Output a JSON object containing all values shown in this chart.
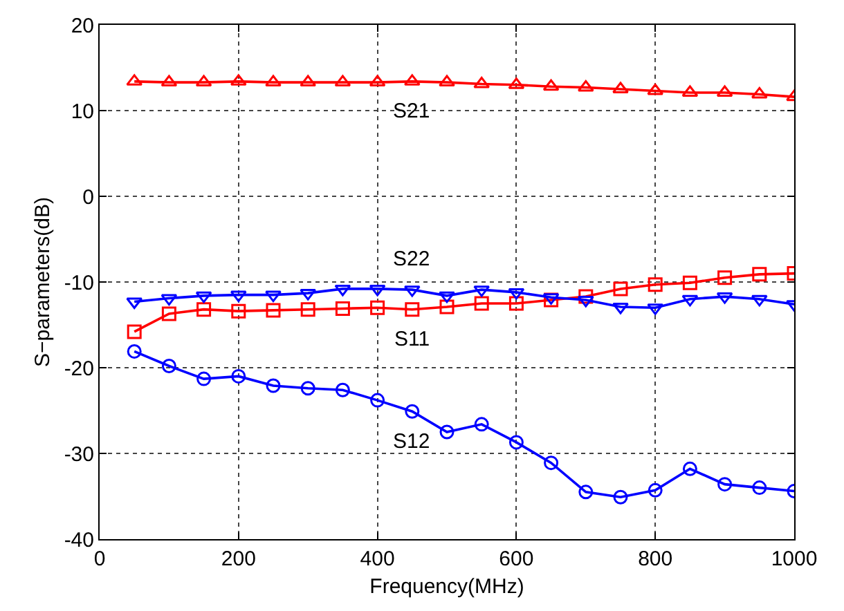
{
  "chart_data": {
    "type": "line",
    "xlabel": "Frequency(MHz)",
    "ylabel": "S−parameters(dB)",
    "x": [
      50,
      100,
      150,
      200,
      250,
      300,
      350,
      400,
      450,
      500,
      550,
      600,
      650,
      700,
      750,
      800,
      850,
      900,
      950,
      1000
    ],
    "series": [
      {
        "name": "S21",
        "color": "#ff0000",
        "marker": "triangle",
        "values": [
          13.4,
          13.3,
          13.3,
          13.4,
          13.3,
          13.3,
          13.3,
          13.3,
          13.4,
          13.3,
          13.1,
          13.0,
          12.8,
          12.7,
          12.5,
          12.3,
          12.1,
          12.1,
          11.9,
          11.6
        ]
      },
      {
        "name": "S11",
        "color": "#ff0000",
        "marker": "square",
        "values": [
          -15.8,
          -13.7,
          -13.2,
          -13.4,
          -13.3,
          -13.2,
          -13.1,
          -13.0,
          -13.2,
          -12.9,
          -12.5,
          -12.5,
          -12.1,
          -11.7,
          -10.8,
          -10.3,
          -10.1,
          -9.5,
          -9.1,
          -9.0
        ]
      },
      {
        "name": "S22",
        "color": "#0000ff",
        "marker": "triangle-down",
        "values": [
          -12.3,
          -11.9,
          -11.6,
          -11.5,
          -11.5,
          -11.3,
          -10.8,
          -10.8,
          -10.9,
          -11.6,
          -10.9,
          -11.2,
          -11.8,
          -12.1,
          -12.9,
          -13.0,
          -12.0,
          -11.7,
          -12.0,
          -12.6
        ]
      },
      {
        "name": "S12",
        "color": "#0000ff",
        "marker": "circle",
        "values": [
          -18.1,
          -19.8,
          -21.3,
          -21.0,
          -22.1,
          -22.4,
          -22.6,
          -23.8,
          -25.1,
          -27.5,
          -26.6,
          -28.7,
          -31.1,
          -34.5,
          -35.1,
          -34.3,
          -31.8,
          -33.6,
          -34.0,
          -34.4
        ]
      }
    ],
    "xlim": [
      0,
      1000
    ],
    "xticks": [
      0,
      200,
      400,
      600,
      800,
      1000
    ],
    "ylim": [
      -40,
      20
    ],
    "yticks": [
      -40,
      -30,
      -20,
      -10,
      0,
      10,
      20
    ],
    "grid": true,
    "legend": false,
    "line_style": "solid"
  }
}
